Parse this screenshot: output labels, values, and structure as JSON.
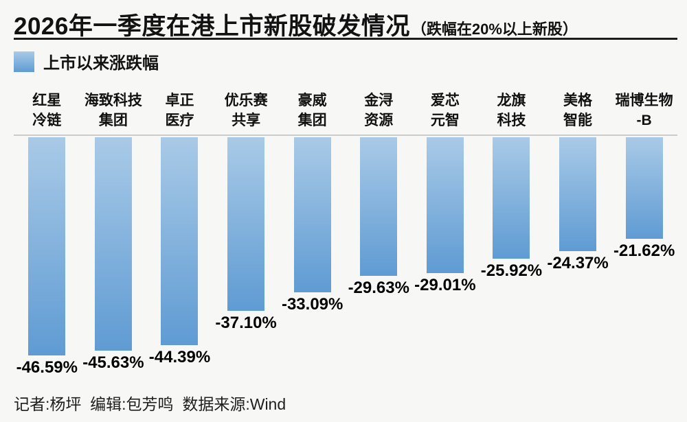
{
  "header": {
    "title": "2026年一季度在港上市新股破发情况",
    "title_note": "（跌幅在20%以上新股）"
  },
  "legend": {
    "label": "上市以来涨跌幅"
  },
  "chart_data": {
    "type": "bar",
    "title": "2026年一季度在港上市新股破发情况（跌幅在20%以上新股）",
    "legend": [
      "上市以来涨跌幅"
    ],
    "legend_position": "top-left",
    "orientation": "vertical",
    "grid": false,
    "categories": [
      "红星冷链",
      "海致科技集团",
      "卓正医疗",
      "优乐赛共享",
      "豪威集团",
      "金浔资源",
      "爱芯元智",
      "龙旗科技",
      "美格智能",
      "瑞博生物-B"
    ],
    "categories_display": [
      [
        "红星",
        "冷链"
      ],
      [
        "海致科技",
        "集团"
      ],
      [
        "卓正",
        "医疗"
      ],
      [
        "优乐赛",
        "共享"
      ],
      [
        "豪威",
        "集团"
      ],
      [
        "金浔",
        "资源"
      ],
      [
        "爱芯",
        "元智"
      ],
      [
        "龙旗",
        "科技"
      ],
      [
        "美格",
        "智能"
      ],
      [
        "瑞博生物",
        "-B"
      ]
    ],
    "values": [
      -46.59,
      -45.63,
      -44.39,
      -37.1,
      -33.09,
      -29.63,
      -29.01,
      -25.92,
      -24.37,
      -21.62
    ],
    "value_labels": [
      "-46.59%",
      "-45.63%",
      "-44.39%",
      "-37.10%",
      "-33.09%",
      "-29.63%",
      "-29.01%",
      "-25.92%",
      "-24.37%",
      "-21.62%"
    ],
    "unit": "%",
    "ylabel": "上市以来涨跌幅",
    "ylim": [
      -50,
      0
    ],
    "bar_color_top": "#a9cae7",
    "bar_color_bottom": "#5f9bd3",
    "baseline_color": "#cbcbc9"
  },
  "footer": {
    "credits": "记者:杨坪  编辑:包芳鸣  数据来源:Wind"
  }
}
